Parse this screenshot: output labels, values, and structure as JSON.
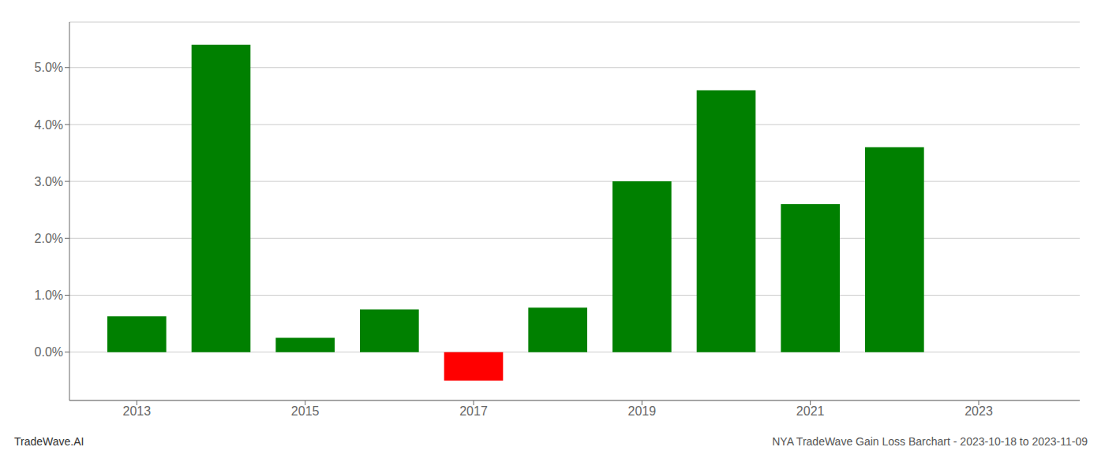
{
  "chart_data": {
    "type": "bar",
    "title": "NYA TradeWave Gain Loss Barchart - 2023-10-18 to 2023-11-09",
    "annotations": [
      "TradeWave.AI"
    ],
    "x": [
      2013,
      2014,
      2015,
      2016,
      2017,
      2018,
      2019,
      2020,
      2021,
      2022
    ],
    "values": [
      0.0063,
      0.054,
      0.0025,
      0.0075,
      -0.005,
      0.0078,
      0.03,
      0.046,
      0.026,
      0.036
    ],
    "colors": [
      "#008000",
      "#008000",
      "#008000",
      "#008000",
      "#ff0000",
      "#008000",
      "#008000",
      "#008000",
      "#008000",
      "#008000"
    ],
    "xlim": [
      2012.2,
      2024.2
    ],
    "xticks": [
      2013,
      2015,
      2017,
      2019,
      2021,
      2023
    ],
    "ylim": [
      -0.0085,
      0.058
    ],
    "yticks": [
      {
        "value": 0.0,
        "label": "0.0%"
      },
      {
        "value": 0.01,
        "label": "1.0%"
      },
      {
        "value": 0.02,
        "label": "2.0%"
      },
      {
        "value": 0.03,
        "label": "3.0%"
      },
      {
        "value": 0.04,
        "label": "4.0%"
      },
      {
        "value": 0.05,
        "label": "5.0%"
      }
    ],
    "grid": true
  }
}
